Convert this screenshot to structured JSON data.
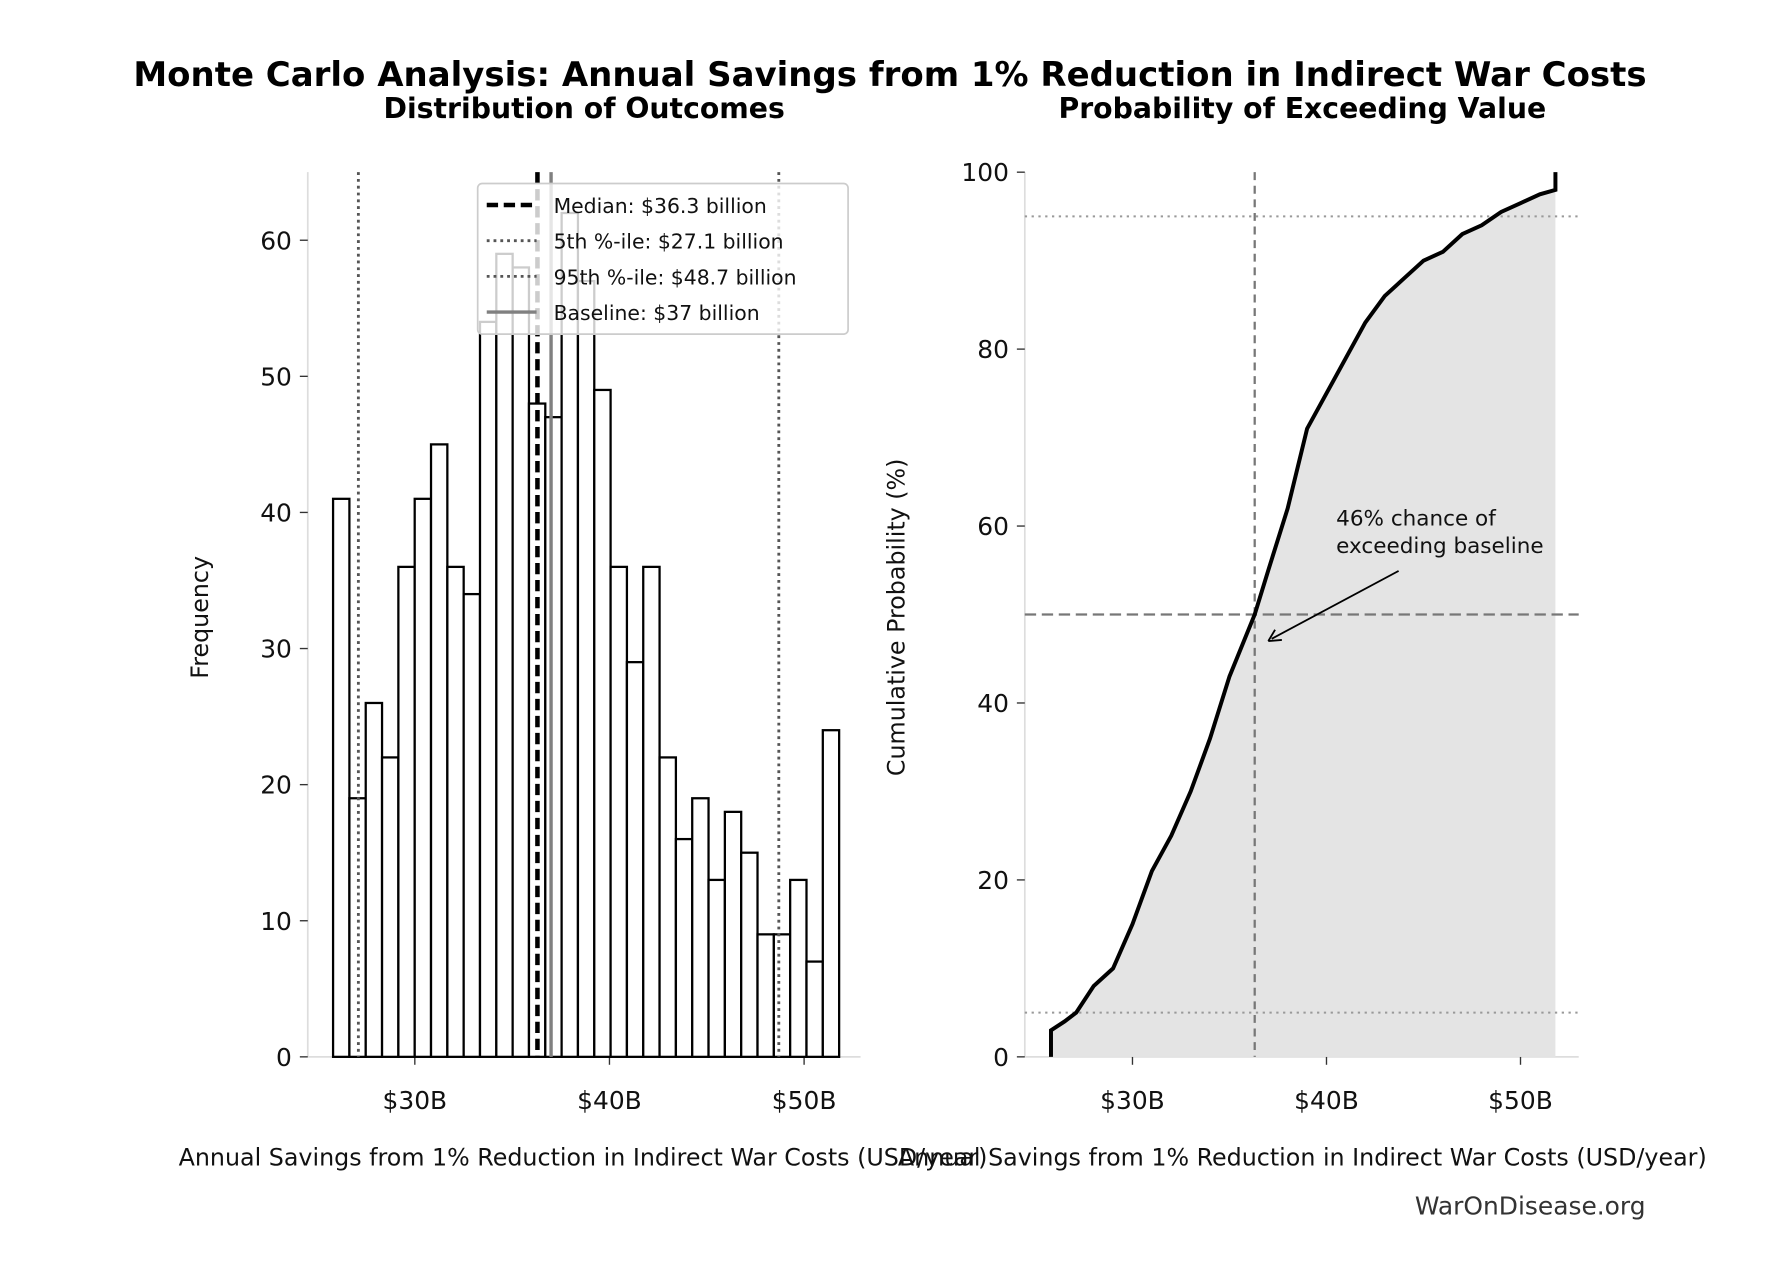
{
  "title": "Monte Carlo Analysis: Annual Savings from 1% Reduction in Indirect War Costs",
  "watermark": "WarOnDisease.org",
  "chart_data": [
    {
      "type": "bar",
      "subtitle": "Distribution of Outcomes",
      "xlabel": "Annual Savings from 1% Reduction in Indirect War Costs (USD/year)",
      "ylabel": "Frequency",
      "xlim": [
        24.5,
        52.9
      ],
      "ylim": [
        0,
        65
      ],
      "xticks": [
        {
          "v": 30,
          "label": "$30B"
        },
        {
          "v": 40,
          "label": "$40B"
        },
        {
          "v": 50,
          "label": "$50B"
        }
      ],
      "yticks": [
        0,
        10,
        20,
        30,
        40,
        50,
        60
      ],
      "bin_start": 25.8,
      "bin_end": 51.8,
      "values": [
        41,
        19,
        26,
        22,
        36,
        41,
        45,
        36,
        34,
        54,
        59,
        58,
        48,
        47,
        62,
        57,
        49,
        36,
        29,
        36,
        22,
        16,
        19,
        13,
        18,
        15,
        9,
        9,
        13,
        7,
        24
      ],
      "reference_lines": [
        {
          "name": "Median: $36.3 billion",
          "x": 36.3,
          "style": "dashed",
          "color": "#000000"
        },
        {
          "name": "5th %-ile: $27.1 billion",
          "x": 27.1,
          "style": "dotted",
          "color": "#555555"
        },
        {
          "name": "95th %-ile: $48.7 billion",
          "x": 48.7,
          "style": "dotted",
          "color": "#555555"
        },
        {
          "name": "Baseline: $37 billion",
          "x": 37,
          "style": "solid",
          "color": "#808080"
        }
      ],
      "legend_position": "top-right"
    },
    {
      "type": "area",
      "subtitle": "Probability of Exceeding Value",
      "xlabel": "Annual Savings from 1% Reduction in Indirect War Costs (USD/year)",
      "ylabel": "Cumulative Probability (%)",
      "xlim": [
        24.45,
        53.0
      ],
      "ylim": [
        0,
        100
      ],
      "xticks": [
        {
          "v": 30,
          "label": "$30B"
        },
        {
          "v": 40,
          "label": "$40B"
        },
        {
          "v": 50,
          "label": "$50B"
        }
      ],
      "yticks": [
        0,
        20,
        40,
        60,
        80,
        100
      ],
      "fill_color": "#e4e4e4",
      "points": [
        [
          25.8,
          0
        ],
        [
          25.8,
          3
        ],
        [
          26.5,
          4
        ],
        [
          27.1,
          5
        ],
        [
          28,
          8
        ],
        [
          29,
          10
        ],
        [
          30,
          15
        ],
        [
          31,
          21
        ],
        [
          32,
          25
        ],
        [
          33,
          30
        ],
        [
          34,
          36
        ],
        [
          35,
          43
        ],
        [
          36.3,
          50
        ],
        [
          37,
          55
        ],
        [
          38,
          62
        ],
        [
          39,
          71
        ],
        [
          40,
          75
        ],
        [
          41,
          79
        ],
        [
          42,
          83
        ],
        [
          43,
          86
        ],
        [
          44,
          88
        ],
        [
          45,
          90
        ],
        [
          46,
          91
        ],
        [
          47,
          93
        ],
        [
          48,
          94
        ],
        [
          49,
          95.5
        ],
        [
          50,
          96.5
        ],
        [
          51,
          97.5
        ],
        [
          51.8,
          98
        ],
        [
          51.8,
          100
        ]
      ],
      "hlines": [
        {
          "y": 50,
          "style": "dashed"
        },
        {
          "y": 5,
          "style": "dotted"
        },
        {
          "y": 95,
          "style": "dotted"
        }
      ],
      "vlines": [
        {
          "x": 36.3,
          "style": "dashed"
        }
      ],
      "annotation": {
        "lines": [
          "46% chance of",
          "exceeding baseline"
        ],
        "text_at": [
          40.5,
          58.5
        ],
        "arrow_to": [
          37,
          47
        ]
      }
    }
  ]
}
